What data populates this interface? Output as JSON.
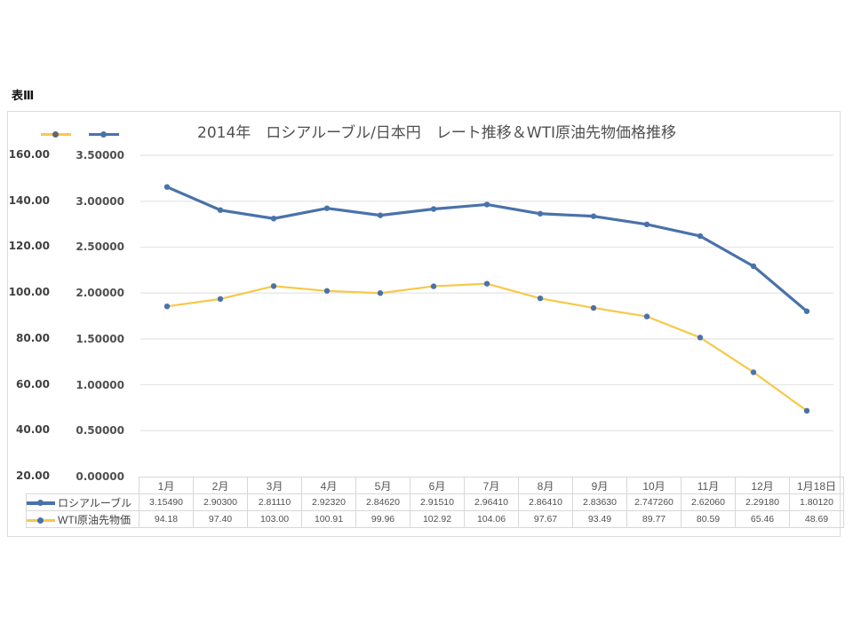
{
  "caption": "表Ⅲ",
  "colors": {
    "ruble": "#4a72aa",
    "wti": "#f6c94a",
    "marker": "#4a72aa",
    "grid": "#e4e4e4"
  },
  "chart_data": {
    "type": "line",
    "title": "2014年　ロシアルーブル/日本円　レート推移＆WTI原油先物価格推移",
    "categories": [
      "1月",
      "2月",
      "3月",
      "4月",
      "5月",
      "6月",
      "7月",
      "8月",
      "9月",
      "10月",
      "11月",
      "12月",
      "1月18日"
    ],
    "series": [
      {
        "name": "ロシアルーブル",
        "axis": "right",
        "values": [
          3.1549,
          2.903,
          2.8111,
          2.9232,
          2.8462,
          2.9151,
          2.9641,
          2.8641,
          2.8363,
          2.74726,
          2.6206,
          2.2918,
          1.8012
        ],
        "labels": [
          "3.15490",
          "2.90300",
          "2.81110",
          "2.92320",
          "2.84620",
          "2.91510",
          "2.96410",
          "2.86410",
          "2.83630",
          "2.747260",
          "2.62060",
          "2.29180",
          "1.80120"
        ]
      },
      {
        "name": "WTI原油先物価",
        "axis": "left",
        "values": [
          94.18,
          97.4,
          103.0,
          100.91,
          99.96,
          102.92,
          104.06,
          97.67,
          93.49,
          89.77,
          80.59,
          65.46,
          48.69
        ],
        "labels": [
          "94.18",
          "97.40",
          "103.00",
          "100.91",
          "99.96",
          "102.92",
          "104.06",
          "97.67",
          "93.49",
          "89.77",
          "80.59",
          "65.46",
          "48.69"
        ]
      }
    ],
    "left_axis": {
      "ylim": [
        20,
        160
      ],
      "ticks": [
        "160.00",
        "140.00",
        "120.00",
        "100.00",
        "80.00",
        "60.00",
        "40.00",
        "20.00"
      ]
    },
    "right_axis": {
      "ylim": [
        0,
        3.5
      ],
      "ticks": [
        "3.50000",
        "3.00000",
        "2.50000",
        "2.00000",
        "1.50000",
        "1.00000",
        "0.50000",
        "0.00000"
      ]
    },
    "legend": "top-left",
    "grid": true,
    "data_table": true
  }
}
